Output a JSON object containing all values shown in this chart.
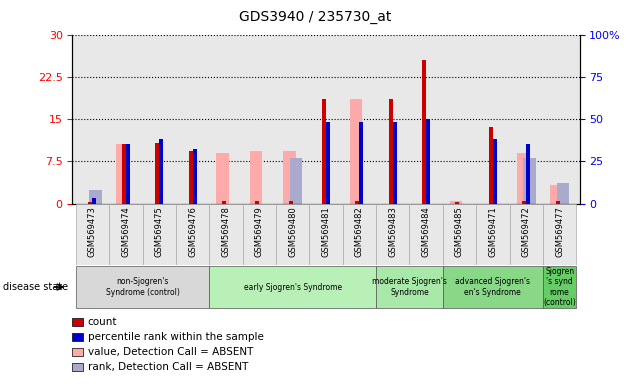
{
  "title": "GDS3940 / 235730_at",
  "samples": [
    "GSM569473",
    "GSM569474",
    "GSM569475",
    "GSM569476",
    "GSM569478",
    "GSM569479",
    "GSM569480",
    "GSM569481",
    "GSM569482",
    "GSM569483",
    "GSM569484",
    "GSM569485",
    "GSM569471",
    "GSM569472",
    "GSM569477"
  ],
  "count": [
    0.3,
    10.5,
    10.8,
    9.3,
    0.4,
    0.4,
    0.4,
    18.5,
    0.4,
    18.5,
    25.5,
    0.3,
    13.5,
    0.4,
    0.4
  ],
  "percentile_rank": [
    3,
    35,
    38,
    32,
    0,
    0,
    0,
    48,
    48,
    48,
    50,
    0,
    38,
    35,
    0
  ],
  "value_absent": [
    0,
    10.5,
    0,
    0,
    9.0,
    9.3,
    9.3,
    0,
    18.5,
    0,
    0,
    0.5,
    0,
    9.0,
    3.2
  ],
  "rank_absent": [
    8,
    0,
    0,
    0,
    0,
    0,
    27,
    0,
    0,
    0,
    0,
    0,
    0,
    27,
    12
  ],
  "count_color": "#cc0000",
  "percentile_color": "#0000cc",
  "value_absent_color": "#ffaaaa",
  "rank_absent_color": "#aaaacc",
  "ylim": [
    0,
    30
  ],
  "y2lim": [
    0,
    100
  ],
  "yticks": [
    0,
    7.5,
    15,
    22.5,
    30
  ],
  "ytick_labels": [
    "0",
    "7.5",
    "15",
    "22.5",
    "30"
  ],
  "y2ticks": [
    0,
    25,
    50,
    75,
    100
  ],
  "y2tick_labels": [
    "0",
    "25",
    "50",
    "75",
    "100%"
  ],
  "groups": [
    {
      "label": "non-Sjogren's\nSyndrome (control)",
      "start": 0,
      "end": 4,
      "color": "#d8d8d8"
    },
    {
      "label": "early Sjogren's Syndrome",
      "start": 4,
      "end": 9,
      "color": "#b8f0b8"
    },
    {
      "label": "moderate Sjogren's\nSyndrome",
      "start": 9,
      "end": 11,
      "color": "#a8e8a8"
    },
    {
      "label": "advanced Sjogren's\nen's Syndrome",
      "start": 11,
      "end": 14,
      "color": "#88d888"
    },
    {
      "label": "Sjogren\n's synd\nrome\n(control)",
      "start": 14,
      "end": 15,
      "color": "#66cc66"
    }
  ],
  "disease_state_label": "disease state",
  "background_color": "#e8e8e8"
}
